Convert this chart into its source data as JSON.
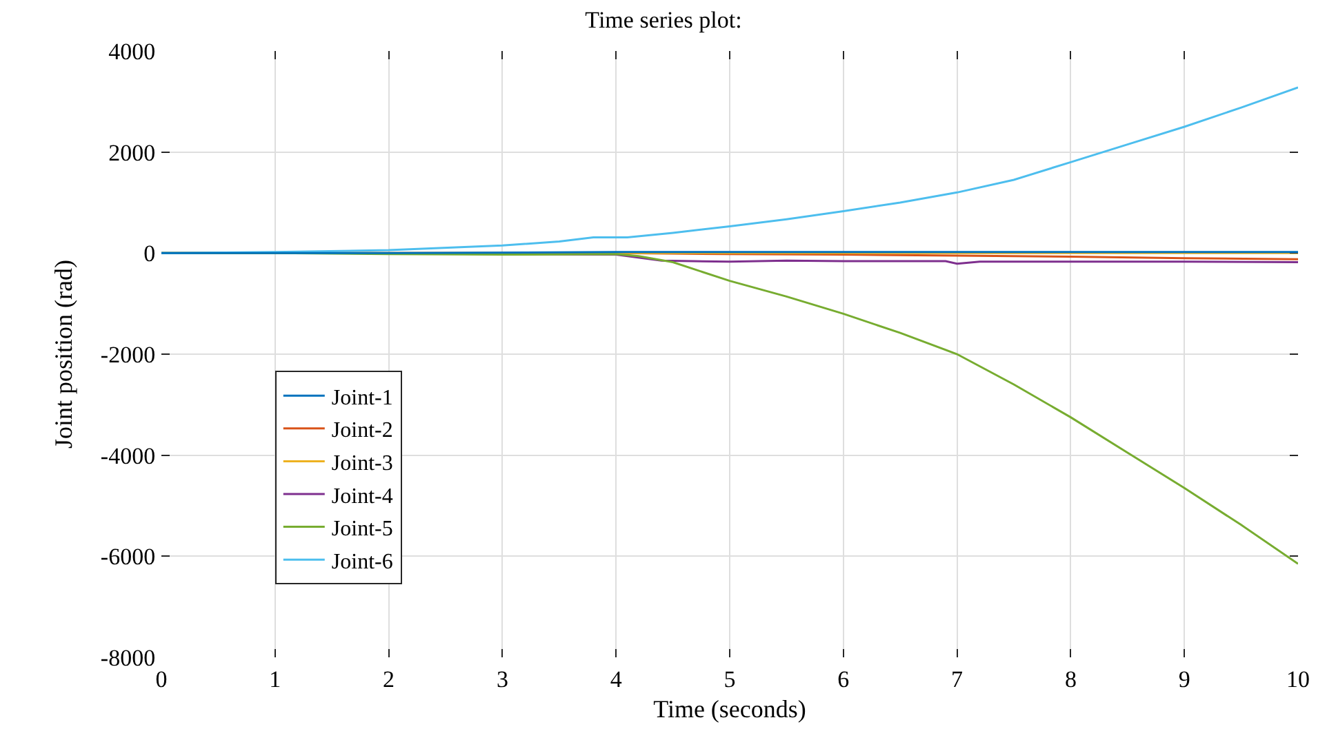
{
  "chart_data": {
    "type": "line",
    "title": "Time series plot:",
    "xlabel": "Time (seconds)",
    "ylabel": "Joint position (rad)",
    "xlim": [
      0,
      10
    ],
    "ylim": [
      -8000,
      4000
    ],
    "xticks": [
      0,
      1,
      2,
      3,
      4,
      5,
      6,
      7,
      8,
      9,
      10
    ],
    "yticks": [
      -8000,
      -6000,
      -4000,
      -2000,
      0,
      2000,
      4000
    ],
    "grid": true,
    "legend": "bottom left",
    "line_style": "solid",
    "series": [
      {
        "name": "Joint-1",
        "color": "#0072bd",
        "x": [
          0,
          2,
          4,
          6,
          8,
          10
        ],
        "values": [
          0,
          0,
          20,
          20,
          20,
          20
        ]
      },
      {
        "name": "Joint-2",
        "color": "#d95319",
        "x": [
          0,
          2,
          4,
          5,
          6,
          7,
          8,
          9,
          10
        ],
        "values": [
          0,
          0,
          0,
          -20,
          -30,
          -50,
          -70,
          -100,
          -120
        ]
      },
      {
        "name": "Joint-3",
        "color": "#edb120",
        "x": [
          0,
          2,
          4,
          6,
          8,
          10
        ],
        "values": [
          0,
          0,
          0,
          0,
          0,
          0
        ]
      },
      {
        "name": "Joint-4",
        "color": "#7e2f8e",
        "x": [
          2,
          3,
          4,
          4.4,
          5,
          5.5,
          6,
          6.9,
          7,
          7.2,
          8,
          9,
          10
        ],
        "values": [
          -10,
          -20,
          -30,
          -150,
          -170,
          -150,
          -160,
          -160,
          -210,
          -170,
          -170,
          -170,
          -180
        ]
      },
      {
        "name": "Joint-5",
        "color": "#77ac30",
        "x": [
          0,
          1,
          2,
          3,
          4,
          4.2,
          4.5,
          5,
          5.5,
          6,
          6.5,
          7,
          7.5,
          8,
          8.5,
          9,
          9.5,
          10
        ],
        "values": [
          0,
          0,
          -20,
          -30,
          -20,
          -60,
          -180,
          -550,
          -860,
          -1200,
          -1580,
          -2000,
          -2600,
          -3250,
          -3950,
          -4650,
          -5380,
          -6150
        ]
      },
      {
        "name": "Joint-6",
        "color": "#4dbeee",
        "x": [
          0,
          1,
          2,
          3,
          3.5,
          3.8,
          4.1,
          4.5,
          5,
          5.5,
          6,
          6.5,
          7,
          7.5,
          8,
          8.5,
          9,
          9.5,
          10
        ],
        "values": [
          0,
          20,
          60,
          150,
          230,
          310,
          310,
          400,
          530,
          670,
          830,
          1000,
          1200,
          1450,
          1800,
          2150,
          2500,
          2880,
          3280
        ]
      }
    ]
  }
}
